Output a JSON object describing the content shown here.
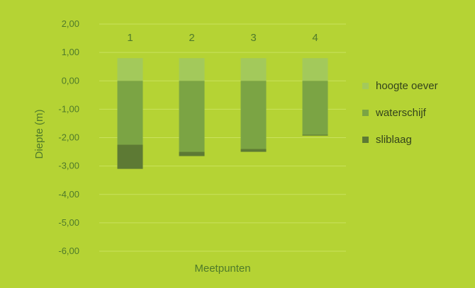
{
  "chart_data": {
    "type": "bar",
    "stacked": true,
    "categories": [
      "1",
      "2",
      "3",
      "4"
    ],
    "series": [
      {
        "name": "hoogte oever",
        "values": [
          0.8,
          0.8,
          0.8,
          0.8
        ],
        "color": "#a3c95b"
      },
      {
        "name": "waterschijf",
        "values": [
          -2.25,
          -2.5,
          -2.4,
          -1.9
        ],
        "color": "#7ba444"
      },
      {
        "name": "sliblaag",
        "values": [
          -0.85,
          -0.15,
          -0.1,
          -0.03
        ],
        "color": "#5d7a34"
      }
    ],
    "title": "",
    "xlabel": "Meetpunten",
    "ylabel": "Diepte (m)",
    "ylim": [
      -6,
      2
    ],
    "yticks": [
      "2,00",
      "1,00",
      "0,00",
      "-1,00",
      "-2,00",
      "-3,00",
      "-4,00",
      "-5,00",
      "-6,00"
    ],
    "category_labels_position": "top",
    "grid": true,
    "legend": "right"
  }
}
